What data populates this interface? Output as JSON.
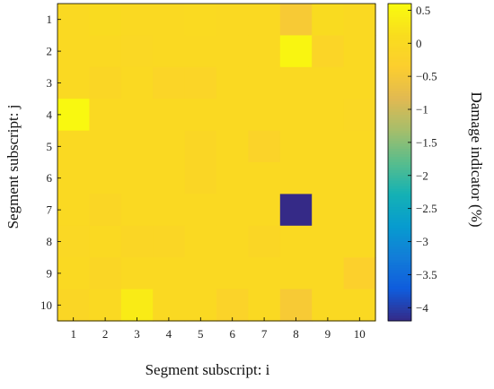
{
  "chart_data": {
    "type": "heatmap",
    "x": [
      1,
      2,
      3,
      4,
      5,
      6,
      7,
      8,
      9,
      10
    ],
    "y": [
      1,
      2,
      3,
      4,
      5,
      6,
      7,
      8,
      9,
      10
    ],
    "xlabel": "Segment subscript: i",
    "ylabel": "Segment subscript: j",
    "colorbar": {
      "label": "Damage indicator (%)",
      "range": [
        -4.2,
        0.6
      ],
      "ticks": [
        0.5,
        0,
        -0.5,
        -1,
        -1.5,
        -2,
        -2.5,
        -3,
        -3.5,
        -4
      ],
      "tick_labels": [
        "0.5",
        "0",
        "−0.5",
        "−1",
        "−1.5",
        "−2",
        "−2.5",
        "−3",
        "−3.5",
        "−4"
      ],
      "colormap": "parula"
    },
    "values": [
      [
        0.0,
        0.05,
        0.0,
        0.0,
        0.03,
        0.0,
        0.0,
        -0.45,
        0.05,
        0.0
      ],
      [
        0.0,
        0.0,
        -0.05,
        0.0,
        0.0,
        0.0,
        0.0,
        0.5,
        -0.15,
        0.0
      ],
      [
        0.0,
        -0.1,
        0.0,
        -0.15,
        -0.15,
        0.0,
        0.0,
        0.0,
        0.0,
        0.0
      ],
      [
        0.55,
        0.0,
        0.0,
        0.0,
        0.0,
        0.0,
        0.0,
        0.0,
        0.0,
        -0.05
      ],
      [
        0.0,
        0.0,
        0.0,
        0.0,
        -0.1,
        0.0,
        -0.2,
        0.0,
        0.0,
        0.0
      ],
      [
        0.0,
        0.0,
        0.0,
        0.0,
        -0.1,
        0.0,
        0.0,
        0.0,
        0.0,
        0.0
      ],
      [
        0.0,
        -0.1,
        0.0,
        0.0,
        0.0,
        0.0,
        0.0,
        -4.2,
        0.0,
        0.0
      ],
      [
        -0.05,
        0.0,
        -0.1,
        -0.1,
        0.0,
        0.0,
        -0.1,
        0.0,
        0.0,
        0.0
      ],
      [
        0.0,
        -0.1,
        0.0,
        0.0,
        0.0,
        0.0,
        0.0,
        0.0,
        0.0,
        -0.3
      ],
      [
        -0.1,
        0.0,
        0.35,
        0.0,
        0.0,
        -0.2,
        0.0,
        -0.45,
        0.0,
        0.0
      ]
    ]
  }
}
